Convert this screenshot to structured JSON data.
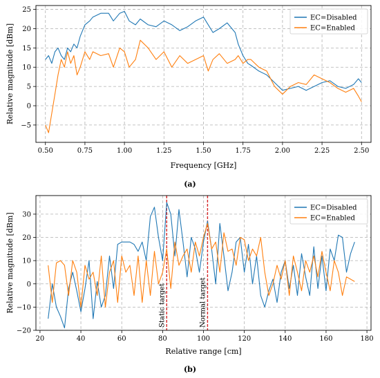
{
  "chart_data": [
    {
      "type": "line",
      "caption": "(a)",
      "xlabel": "Frequency [GHz]",
      "ylabel": "Relative magnitude [dBm]",
      "xlim": [
        0.44,
        2.56
      ],
      "ylim": [
        -9.5,
        26
      ],
      "xticks": [
        0.5,
        0.75,
        1.0,
        1.25,
        1.5,
        1.75,
        2.0,
        2.25,
        2.5
      ],
      "xticklabels": [
        "0.50",
        "0.75",
        "1.00",
        "1.25",
        "1.50",
        "1.75",
        "2.00",
        "2.25",
        "2.50"
      ],
      "yticks": [
        -5,
        0,
        5,
        10,
        15,
        20,
        25
      ],
      "yticklabels": [
        "−5",
        "0",
        "5",
        "10",
        "15",
        "20",
        "25"
      ],
      "grid": "dashed",
      "legend": "top-right",
      "series": [
        {
          "name": "EC=Disabled",
          "color": "#1f77b4",
          "points": [
            [
              0.5,
              12
            ],
            [
              0.52,
              13
            ],
            [
              0.54,
              11
            ],
            [
              0.56,
              14
            ],
            [
              0.58,
              15
            ],
            [
              0.6,
              13
            ],
            [
              0.62,
              12
            ],
            [
              0.64,
              15
            ],
            [
              0.66,
              14
            ],
            [
              0.68,
              16
            ],
            [
              0.7,
              15
            ],
            [
              0.72,
              18
            ],
            [
              0.75,
              21
            ],
            [
              0.78,
              22
            ],
            [
              0.8,
              23
            ],
            [
              0.85,
              24
            ],
            [
              0.9,
              24
            ],
            [
              0.93,
              22
            ],
            [
              0.97,
              24
            ],
            [
              1.0,
              24.5
            ],
            [
              1.03,
              22
            ],
            [
              1.07,
              21
            ],
            [
              1.1,
              22.5
            ],
            [
              1.15,
              21
            ],
            [
              1.2,
              20.5
            ],
            [
              1.25,
              22
            ],
            [
              1.3,
              21
            ],
            [
              1.35,
              19.5
            ],
            [
              1.4,
              20.5
            ],
            [
              1.45,
              22
            ],
            [
              1.5,
              23
            ],
            [
              1.53,
              21
            ],
            [
              1.56,
              19
            ],
            [
              1.6,
              20
            ],
            [
              1.65,
              21.5
            ],
            [
              1.7,
              19
            ],
            [
              1.72,
              16
            ],
            [
              1.75,
              13
            ],
            [
              1.78,
              11
            ],
            [
              1.8,
              10.5
            ],
            [
              1.85,
              9
            ],
            [
              1.9,
              8
            ],
            [
              1.95,
              6
            ],
            [
              2.0,
              4
            ],
            [
              2.05,
              4.5
            ],
            [
              2.1,
              5
            ],
            [
              2.15,
              4
            ],
            [
              2.2,
              5
            ],
            [
              2.25,
              6
            ],
            [
              2.3,
              6.5
            ],
            [
              2.35,
              5
            ],
            [
              2.4,
              4.5
            ],
            [
              2.45,
              5.5
            ],
            [
              2.48,
              7
            ],
            [
              2.5,
              6
            ]
          ]
        },
        {
          "name": "EC=Enabled",
          "color": "#ff7f0e",
          "points": [
            [
              0.5,
              -5
            ],
            [
              0.52,
              -7
            ],
            [
              0.54,
              -2
            ],
            [
              0.56,
              3
            ],
            [
              0.58,
              8
            ],
            [
              0.6,
              12
            ],
            [
              0.62,
              10
            ],
            [
              0.64,
              14
            ],
            [
              0.66,
              11
            ],
            [
              0.68,
              13
            ],
            [
              0.7,
              8
            ],
            [
              0.72,
              10
            ],
            [
              0.75,
              14
            ],
            [
              0.78,
              12
            ],
            [
              0.8,
              14
            ],
            [
              0.85,
              13
            ],
            [
              0.9,
              13.5
            ],
            [
              0.93,
              10
            ],
            [
              0.97,
              15
            ],
            [
              1.0,
              14
            ],
            [
              1.03,
              10
            ],
            [
              1.07,
              12
            ],
            [
              1.1,
              17
            ],
            [
              1.15,
              15
            ],
            [
              1.2,
              12
            ],
            [
              1.25,
              14
            ],
            [
              1.3,
              10
            ],
            [
              1.35,
              13
            ],
            [
              1.4,
              11
            ],
            [
              1.45,
              12
            ],
            [
              1.5,
              13
            ],
            [
              1.53,
              9
            ],
            [
              1.56,
              12
            ],
            [
              1.6,
              13.5
            ],
            [
              1.65,
              11
            ],
            [
              1.7,
              12
            ],
            [
              1.72,
              13
            ],
            [
              1.75,
              11
            ],
            [
              1.78,
              12
            ],
            [
              1.8,
              12
            ],
            [
              1.85,
              10
            ],
            [
              1.9,
              9
            ],
            [
              1.95,
              5
            ],
            [
              2.0,
              3
            ],
            [
              2.05,
              5
            ],
            [
              2.1,
              6
            ],
            [
              2.15,
              5.5
            ],
            [
              2.2,
              8
            ],
            [
              2.25,
              7
            ],
            [
              2.3,
              6
            ],
            [
              2.35,
              4.5
            ],
            [
              2.4,
              3.5
            ],
            [
              2.45,
              4.5
            ],
            [
              2.48,
              2.5
            ],
            [
              2.5,
              1
            ]
          ]
        }
      ]
    },
    {
      "type": "line",
      "caption": "(b)",
      "xlabel": "Relative range [cm]",
      "ylabel": "Relative magnitude [dBm]",
      "xlim": [
        18,
        182
      ],
      "ylim": [
        -20,
        38
      ],
      "xticks": [
        20,
        40,
        60,
        80,
        100,
        120,
        140,
        160,
        180
      ],
      "xticklabels": [
        "20",
        "40",
        "60",
        "80",
        "100",
        "120",
        "140",
        "160",
        "180"
      ],
      "yticks": [
        -20,
        -10,
        0,
        10,
        20,
        30
      ],
      "yticklabels": [
        "−20",
        "−10",
        "0",
        "10",
        "20",
        "30"
      ],
      "grid": "dashed",
      "legend": "top-right",
      "annotations": [
        {
          "label": "Static target",
          "x": 82,
          "color": "#d62728"
        },
        {
          "label": "Normal target",
          "x": 102,
          "color": "#d62728"
        }
      ],
      "series": [
        {
          "name": "EC=Disabled",
          "color": "#1f77b4",
          "points": [
            [
              24,
              -15
            ],
            [
              26,
              0
            ],
            [
              28,
              -10
            ],
            [
              30,
              -14
            ],
            [
              32,
              -19
            ],
            [
              34,
              -2
            ],
            [
              36,
              5
            ],
            [
              38,
              -3
            ],
            [
              40,
              -12
            ],
            [
              42,
              -2
            ],
            [
              44,
              10
            ],
            [
              46,
              -15
            ],
            [
              48,
              1
            ],
            [
              50,
              -10
            ],
            [
              52,
              -5
            ],
            [
              54,
              12
            ],
            [
              56,
              -2
            ],
            [
              58,
              17
            ],
            [
              60,
              18
            ],
            [
              62,
              18
            ],
            [
              64,
              18
            ],
            [
              66,
              17
            ],
            [
              68,
              14
            ],
            [
              70,
              18
            ],
            [
              72,
              10
            ],
            [
              74,
              29
            ],
            [
              76,
              33
            ],
            [
              78,
              20
            ],
            [
              80,
              10
            ],
            [
              82,
              35
            ],
            [
              84,
              30
            ],
            [
              86,
              12
            ],
            [
              88,
              32
            ],
            [
              90,
              18
            ],
            [
              92,
              3
            ],
            [
              94,
              20
            ],
            [
              96,
              15
            ],
            [
              98,
              5
            ],
            [
              100,
              18
            ],
            [
              102,
              27
            ],
            [
              104,
              15
            ],
            [
              106,
              0
            ],
            [
              108,
              26
            ],
            [
              110,
              12
            ],
            [
              112,
              -3
            ],
            [
              114,
              5
            ],
            [
              116,
              18
            ],
            [
              118,
              20
            ],
            [
              120,
              5
            ],
            [
              122,
              17
            ],
            [
              124,
              0
            ],
            [
              126,
              12
            ],
            [
              128,
              -5
            ],
            [
              130,
              -10
            ],
            [
              132,
              -3
            ],
            [
              134,
              2
            ],
            [
              136,
              -8
            ],
            [
              138,
              5
            ],
            [
              140,
              10
            ],
            [
              142,
              -2
            ],
            [
              144,
              8
            ],
            [
              146,
              -5
            ],
            [
              148,
              13
            ],
            [
              150,
              3
            ],
            [
              152,
              -5
            ],
            [
              154,
              16
            ],
            [
              156,
              -2
            ],
            [
              158,
              12
            ],
            [
              160,
              -3
            ],
            [
              162,
              15
            ],
            [
              164,
              10
            ],
            [
              166,
              21
            ],
            [
              168,
              20
            ],
            [
              170,
              5
            ],
            [
              172,
              13
            ],
            [
              174,
              18
            ]
          ]
        },
        {
          "name": "EC=Enabled",
          "color": "#ff7f0e",
          "points": [
            [
              24,
              8
            ],
            [
              26,
              -8
            ],
            [
              28,
              9
            ],
            [
              30,
              10
            ],
            [
              32,
              8
            ],
            [
              34,
              -5
            ],
            [
              36,
              10
            ],
            [
              38,
              5
            ],
            [
              40,
              -10
            ],
            [
              42,
              8
            ],
            [
              44,
              2
            ],
            [
              46,
              5
            ],
            [
              48,
              -5
            ],
            [
              50,
              12
            ],
            [
              52,
              -10
            ],
            [
              54,
              5
            ],
            [
              56,
              10
            ],
            [
              58,
              -8
            ],
            [
              60,
              12
            ],
            [
              62,
              5
            ],
            [
              64,
              8
            ],
            [
              66,
              -5
            ],
            [
              68,
              12
            ],
            [
              70,
              -8
            ],
            [
              72,
              10
            ],
            [
              74,
              -5
            ],
            [
              76,
              14
            ],
            [
              78,
              0
            ],
            [
              80,
              5
            ],
            [
              82,
              15
            ],
            [
              84,
              -2
            ],
            [
              86,
              18
            ],
            [
              88,
              8
            ],
            [
              90,
              12
            ],
            [
              92,
              15
            ],
            [
              94,
              5
            ],
            [
              96,
              18
            ],
            [
              98,
              12
            ],
            [
              100,
              20
            ],
            [
              102,
              26
            ],
            [
              104,
              15
            ],
            [
              106,
              18
            ],
            [
              108,
              5
            ],
            [
              110,
              22
            ],
            [
              112,
              14
            ],
            [
              114,
              15
            ],
            [
              116,
              8
            ],
            [
              118,
              20
            ],
            [
              120,
              19
            ],
            [
              122,
              10
            ],
            [
              124,
              15
            ],
            [
              126,
              12
            ],
            [
              128,
              20
            ],
            [
              130,
              5
            ],
            [
              132,
              -5
            ],
            [
              134,
              0
            ],
            [
              136,
              8
            ],
            [
              138,
              2
            ],
            [
              140,
              10
            ],
            [
              142,
              -5
            ],
            [
              144,
              12
            ],
            [
              146,
              5
            ],
            [
              148,
              -3
            ],
            [
              150,
              10
            ],
            [
              152,
              5
            ],
            [
              154,
              12
            ],
            [
              156,
              3
            ],
            [
              158,
              14
            ],
            [
              160,
              5
            ],
            [
              162,
              -3
            ],
            [
              164,
              10
            ],
            [
              166,
              5
            ],
            [
              168,
              -5
            ],
            [
              170,
              3
            ],
            [
              172,
              2
            ],
            [
              174,
              1
            ]
          ]
        }
      ]
    }
  ]
}
